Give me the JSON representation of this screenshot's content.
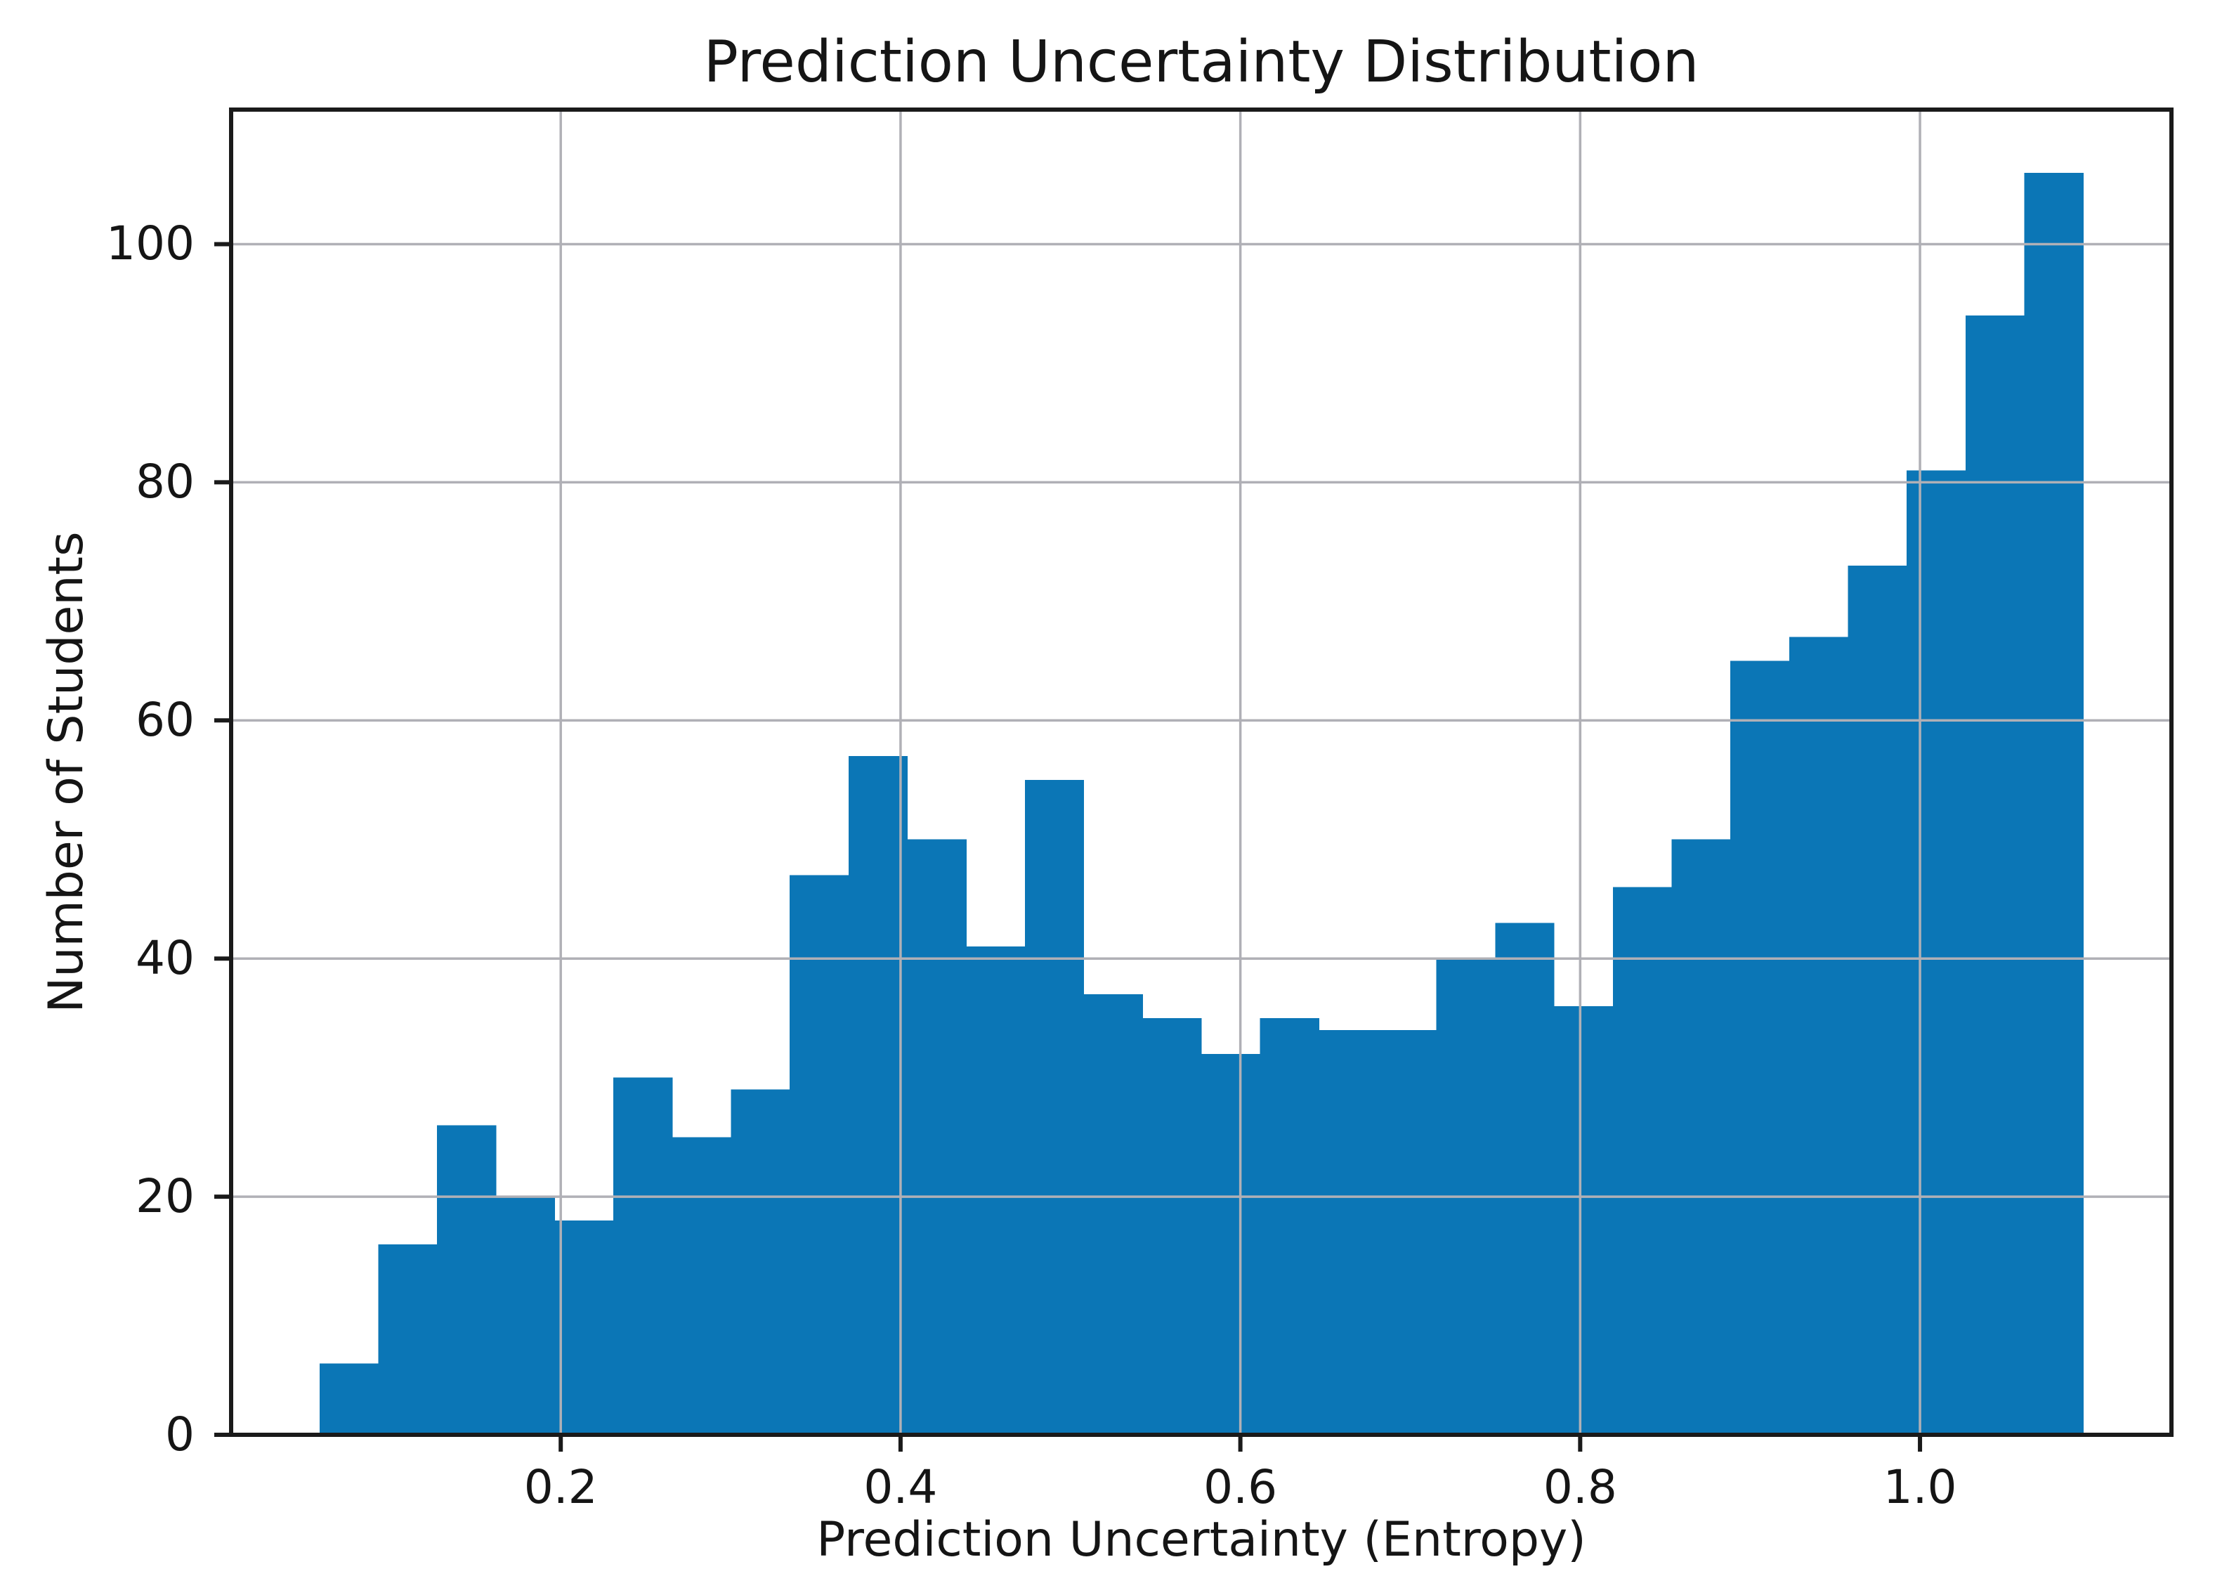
{
  "figure": {
    "background": "#ffffff"
  },
  "chart_data": {
    "type": "bar",
    "subtype": "histogram",
    "title": "Prediction Uncertainty Distribution",
    "xlabel": "Prediction Uncertainty (Entropy)",
    "ylabel": "Number of Students",
    "bin_start": 0.058,
    "bin_width": 0.0346,
    "values": [
      6,
      16,
      26,
      20,
      18,
      30,
      25,
      29,
      47,
      57,
      50,
      41,
      55,
      37,
      35,
      32,
      35,
      34,
      34,
      40,
      43,
      36,
      46,
      50,
      65,
      67,
      73,
      81,
      94,
      106
    ],
    "x_ticks": [
      {
        "value": 0.2,
        "label": "0.2"
      },
      {
        "value": 0.4,
        "label": "0.4"
      },
      {
        "value": 0.6,
        "label": "0.6"
      },
      {
        "value": 0.8,
        "label": "0.8"
      },
      {
        "value": 1.0,
        "label": "1.0"
      }
    ],
    "y_ticks": [
      {
        "value": 0,
        "label": "0"
      },
      {
        "value": 20,
        "label": "20"
      },
      {
        "value": 40,
        "label": "40"
      },
      {
        "value": 60,
        "label": "60"
      },
      {
        "value": 80,
        "label": "80"
      },
      {
        "value": 100,
        "label": "100"
      }
    ],
    "xlim": [
      0.006,
      1.148
    ],
    "ylim": [
      0,
      111.3
    ],
    "grid": true,
    "colors": {
      "bar": "#0b76b6",
      "grid": "#b0b0b6",
      "axis": "#1a1a1a",
      "text": "#151515"
    }
  }
}
